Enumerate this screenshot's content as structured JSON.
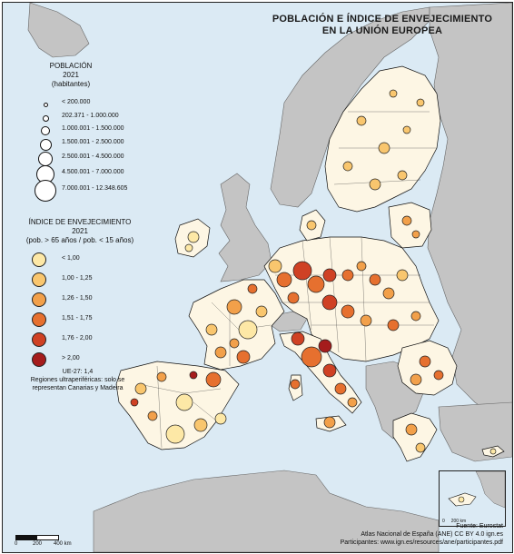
{
  "map": {
    "title_line1": "POBLACIÓN E ÍNDICE DE ENVEJECIMIENTO",
    "title_line2": "EN LA UNIÓN EUROPEA",
    "colors": {
      "sea": "#dbeaf4",
      "non_eu_land": "#c4c4c4",
      "eu_land": "#fdf6e4",
      "border": "#111111"
    }
  },
  "population_legend": {
    "title_line1": "POBLACIÓN",
    "title_line2": "2021",
    "title_line3": "(habitantes)",
    "classes": [
      {
        "label": "< 200.000",
        "diameter": 3
      },
      {
        "label": "202.371 - 1.000.000",
        "diameter": 5
      },
      {
        "label": "1.000.001 - 1.500.000",
        "diameter": 8
      },
      {
        "label": "1.500.001 - 2.500.000",
        "diameter": 11
      },
      {
        "label": "2.500.001 - 4.500.000",
        "diameter": 14
      },
      {
        "label": "4.500.001 - 7.000.000",
        "diameter": 18
      },
      {
        "label": "7.000.001 - 12.348.605",
        "diameter": 22
      }
    ]
  },
  "aging_legend": {
    "title_line1": "ÍNDICE DE ENVEJECIMIENTO",
    "title_line2": "2021",
    "title_line3": "(pob. > 65 años / pob. < 15 años)",
    "classes": [
      {
        "label": "< 1,00",
        "color": "#fde8a6"
      },
      {
        "label": "1,00 - 1,25",
        "color": "#f9c66e"
      },
      {
        "label": "1,26 - 1,50",
        "color": "#f2a04a"
      },
      {
        "label": "1,51 - 1,75",
        "color": "#e6702f"
      },
      {
        "label": "1,76 - 2,00",
        "color": "#cf4124"
      },
      {
        "label": "> 2,00",
        "color": "#a51c1c"
      }
    ]
  },
  "notes": {
    "eu_value": "UE-27: 1,4",
    "outermost_line1": "Regiones ultraperiféricas: solo se",
    "outermost_line2": "representan Canarias y Madeira"
  },
  "credits": {
    "source": "Fuente: Eurostat",
    "atlas": "Atlas Nacional de España (ANE) CC BY 4.0 ign.es",
    "participants": "Participantes: www.ign.es/resources/ane/participantes.pdf"
  },
  "scale": {
    "labels": [
      "0",
      "200",
      "400 km"
    ]
  },
  "inset": {
    "scale_labels": [
      "0",
      "200 km"
    ]
  }
}
